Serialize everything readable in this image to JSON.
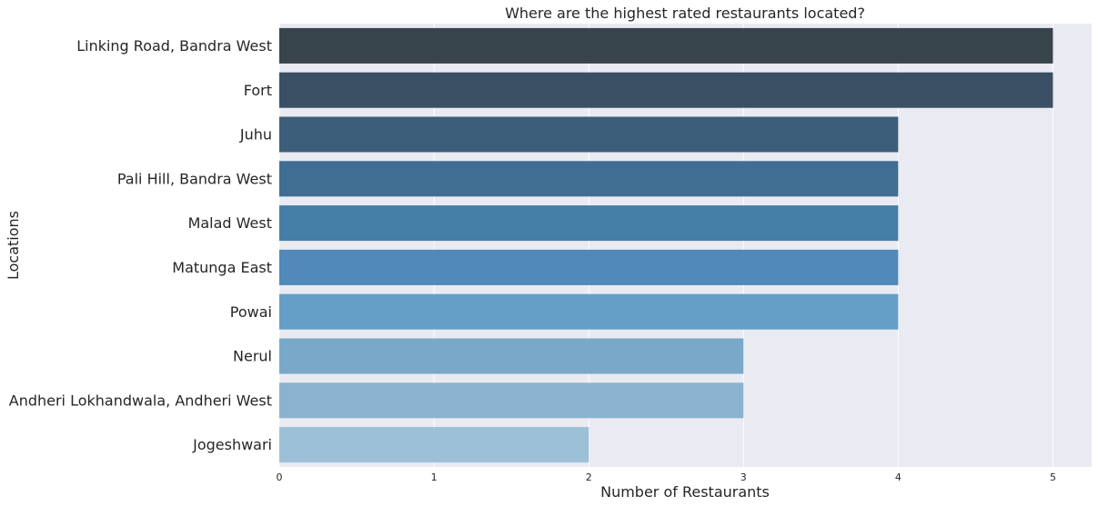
{
  "chart_data": {
    "type": "bar",
    "orientation": "horizontal",
    "title": "Where are the highest rated restaurants located?",
    "xlabel": "Number of Restaurants",
    "ylabel": "Locations",
    "categories": [
      "Linking Road, Bandra West",
      "Fort",
      "Juhu",
      "Pali Hill, Bandra West",
      "Malad West",
      "Matunga East",
      "Powai",
      "Nerul",
      "Andheri Lokhandwala, Andheri West",
      "Jogeshwari"
    ],
    "values": [
      5,
      5,
      4,
      4,
      4,
      4,
      4,
      3,
      3,
      2
    ],
    "xlim": [
      0,
      5.25
    ],
    "xticks": [
      0,
      1,
      2,
      3,
      4,
      5
    ],
    "grid": true,
    "legend": "none",
    "colors": {
      "plot_background": "#eaeaf2",
      "grid": "#ffffff",
      "bars": [
        "#37444b",
        "#3a4f64",
        "#3c5e7b",
        "#3f6e92",
        "#457fa8",
        "#5089ba",
        "#659fc7",
        "#79a8c9",
        "#8bb3cf",
        "#9cc1d7"
      ]
    }
  }
}
